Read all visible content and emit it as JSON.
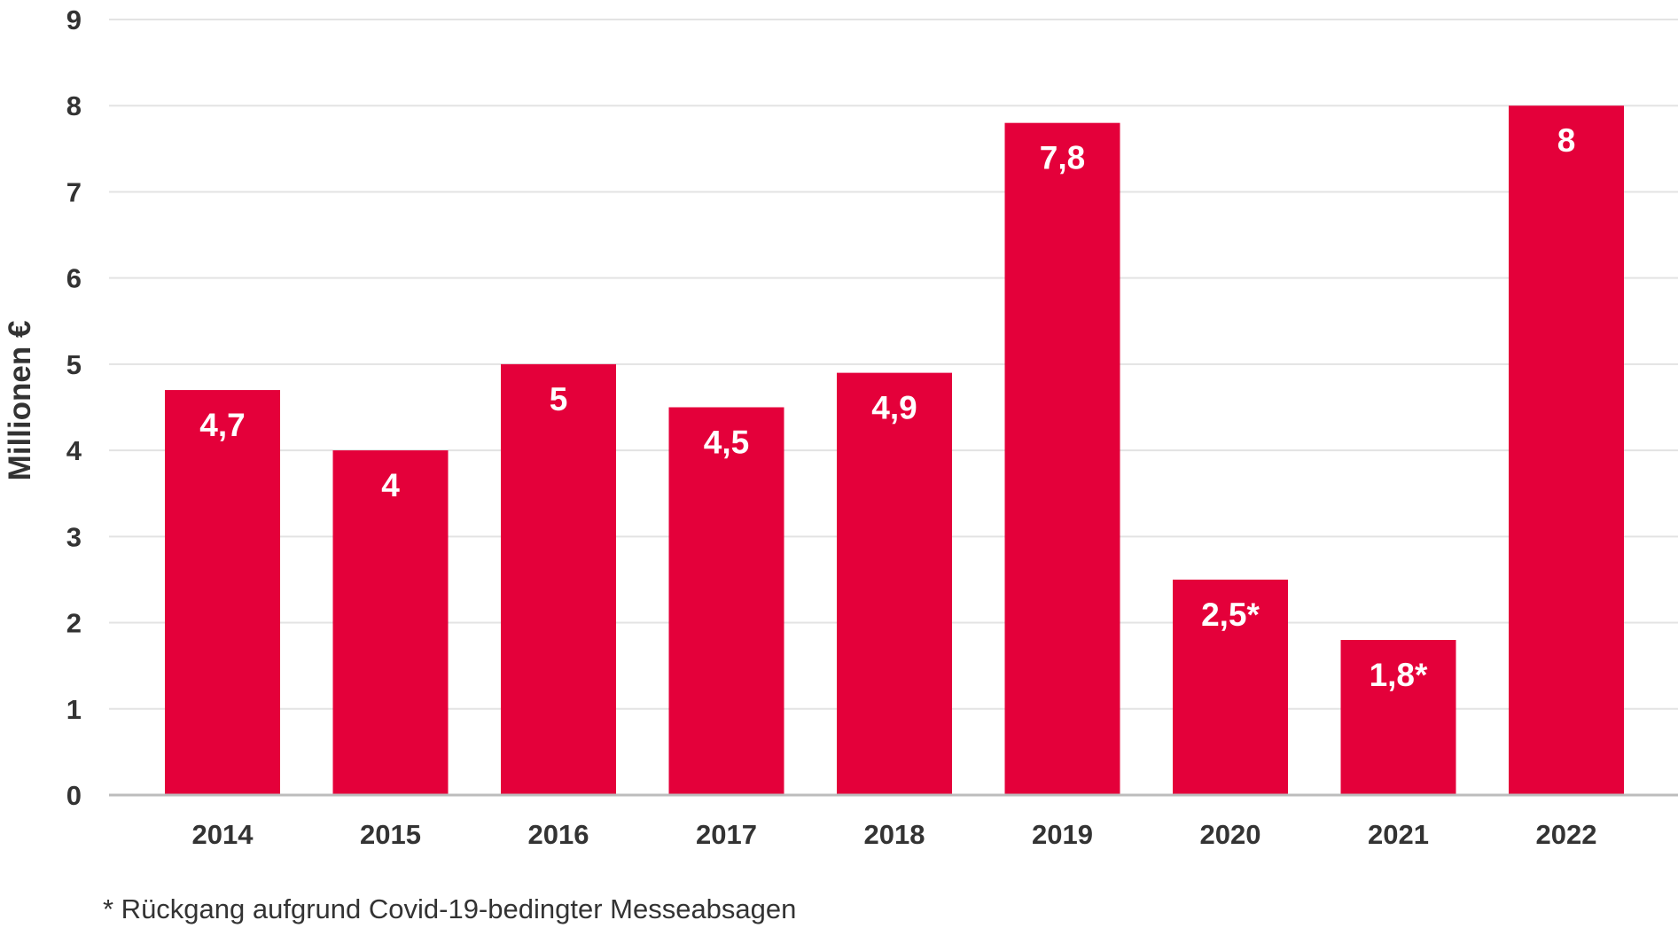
{
  "chart_data": {
    "type": "bar",
    "categories": [
      "2014",
      "2015",
      "2016",
      "2017",
      "2018",
      "2019",
      "2020",
      "2021",
      "2022"
    ],
    "values": [
      4.7,
      4.0,
      5.0,
      4.5,
      4.9,
      7.8,
      2.5,
      1.8,
      8.0
    ],
    "data_labels": [
      "4,7",
      "4",
      "5",
      "4,5",
      "4,9",
      "7,8",
      "2,5*",
      "1,8*",
      "8"
    ],
    "title": "",
    "xlabel": "",
    "ylabel": "Millionen €",
    "ylim": [
      0,
      9
    ],
    "yticks": [
      0,
      1,
      2,
      3,
      4,
      5,
      6,
      7,
      8,
      9
    ],
    "grid": true,
    "legend": "none",
    "bar_color": "#e4003a",
    "footnote": "* Rückgang aufgrund Covid-19-bedingter Messeabsagen"
  }
}
